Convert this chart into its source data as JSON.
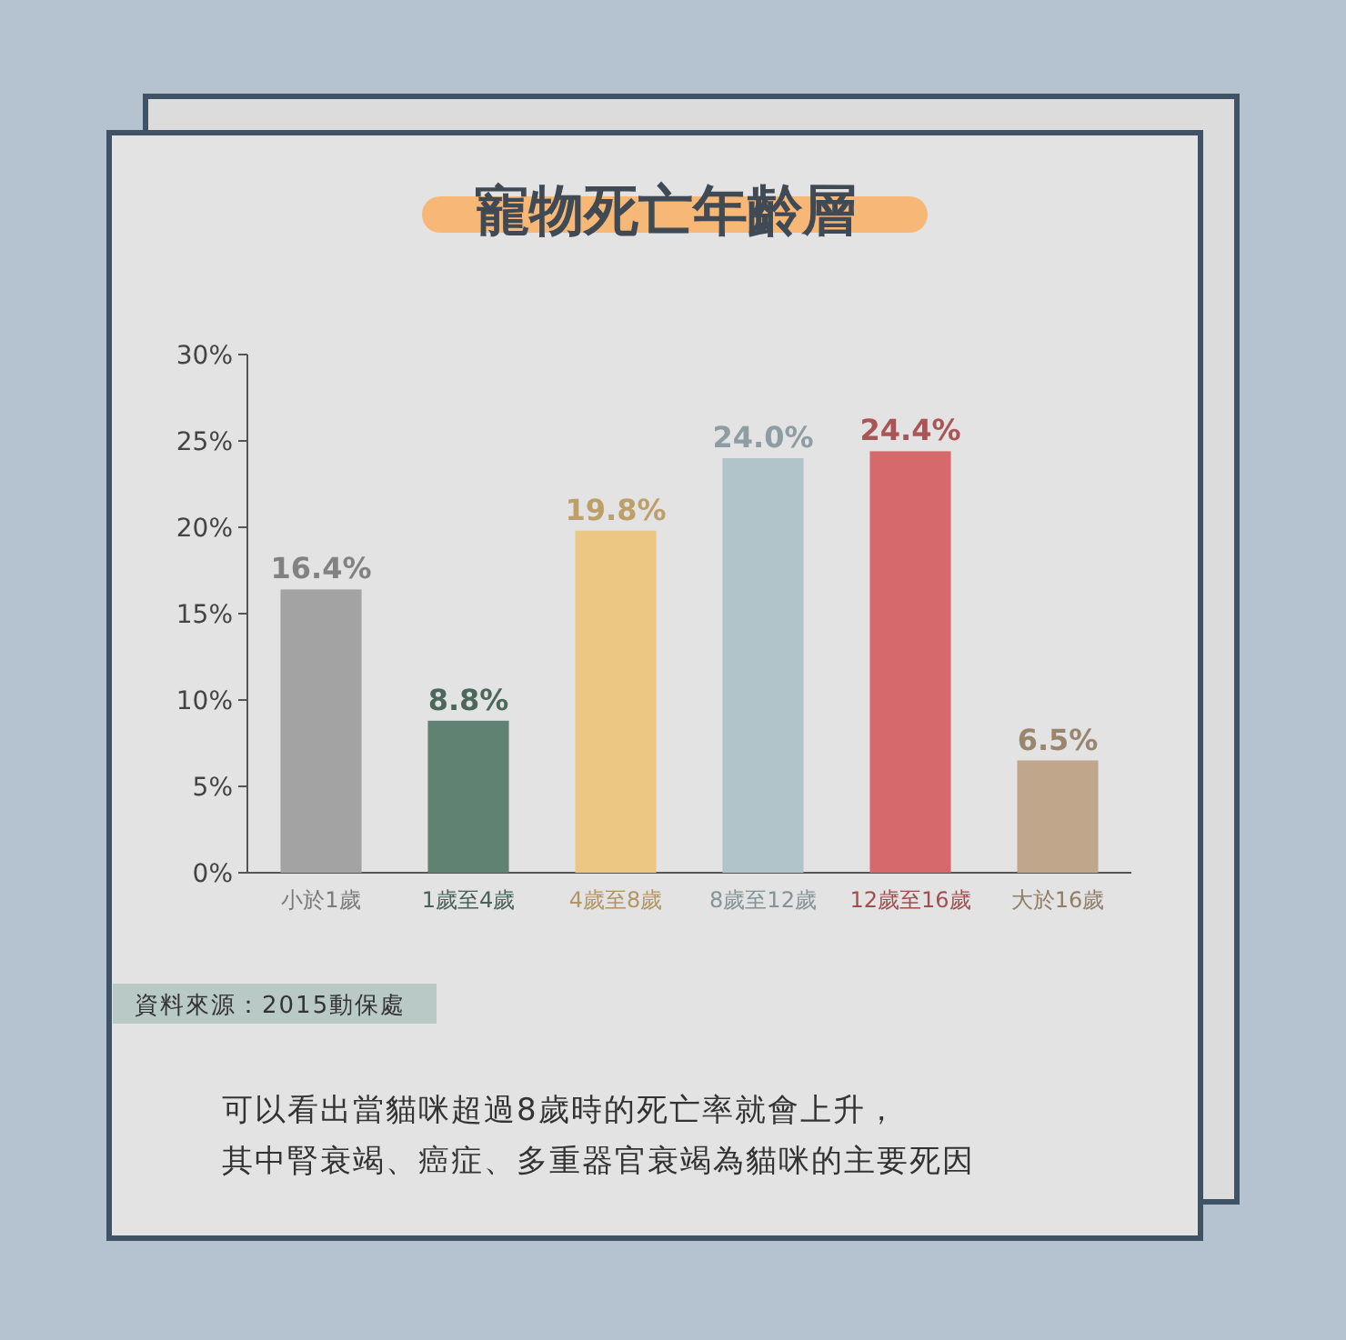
{
  "chart_data": {
    "type": "bar",
    "title": "寵物死亡年齡層",
    "categories": [
      "小於1歲",
      "1歲至4歲",
      "4歲至8歲",
      "8歲至12歲",
      "12歲至16歲",
      "大於16歲"
    ],
    "values": [
      16.4,
      8.8,
      19.8,
      24.0,
      24.4,
      6.5
    ],
    "colors": [
      "#a3a3a3",
      "#5f8272",
      "#ecc784",
      "#b0c4c9",
      "#d5696b",
      "#c0a68b"
    ],
    "value_labels": [
      "16.4%",
      "8.8%",
      "19.8%",
      "24.0%",
      "24.4%",
      "6.5%"
    ],
    "ylim": [
      0,
      30
    ],
    "yticks": [
      {
        "value": 0,
        "label": "0%"
      },
      {
        "value": 5,
        "label": "5%"
      },
      {
        "value": 10,
        "label": "10%"
      },
      {
        "value": 15,
        "label": "15%"
      },
      {
        "value": 20,
        "label": "20%"
      },
      {
        "value": 25,
        "label": "25%"
      },
      {
        "value": 30,
        "label": "30%"
      }
    ],
    "grid": false,
    "annotations": [
      "資料來源：2015動保處",
      "可以看出當貓咪超過8歲時的死亡率就會上升，",
      "其中腎衰竭、癌症、多重器官衰竭為貓咪的主要死因"
    ]
  }
}
